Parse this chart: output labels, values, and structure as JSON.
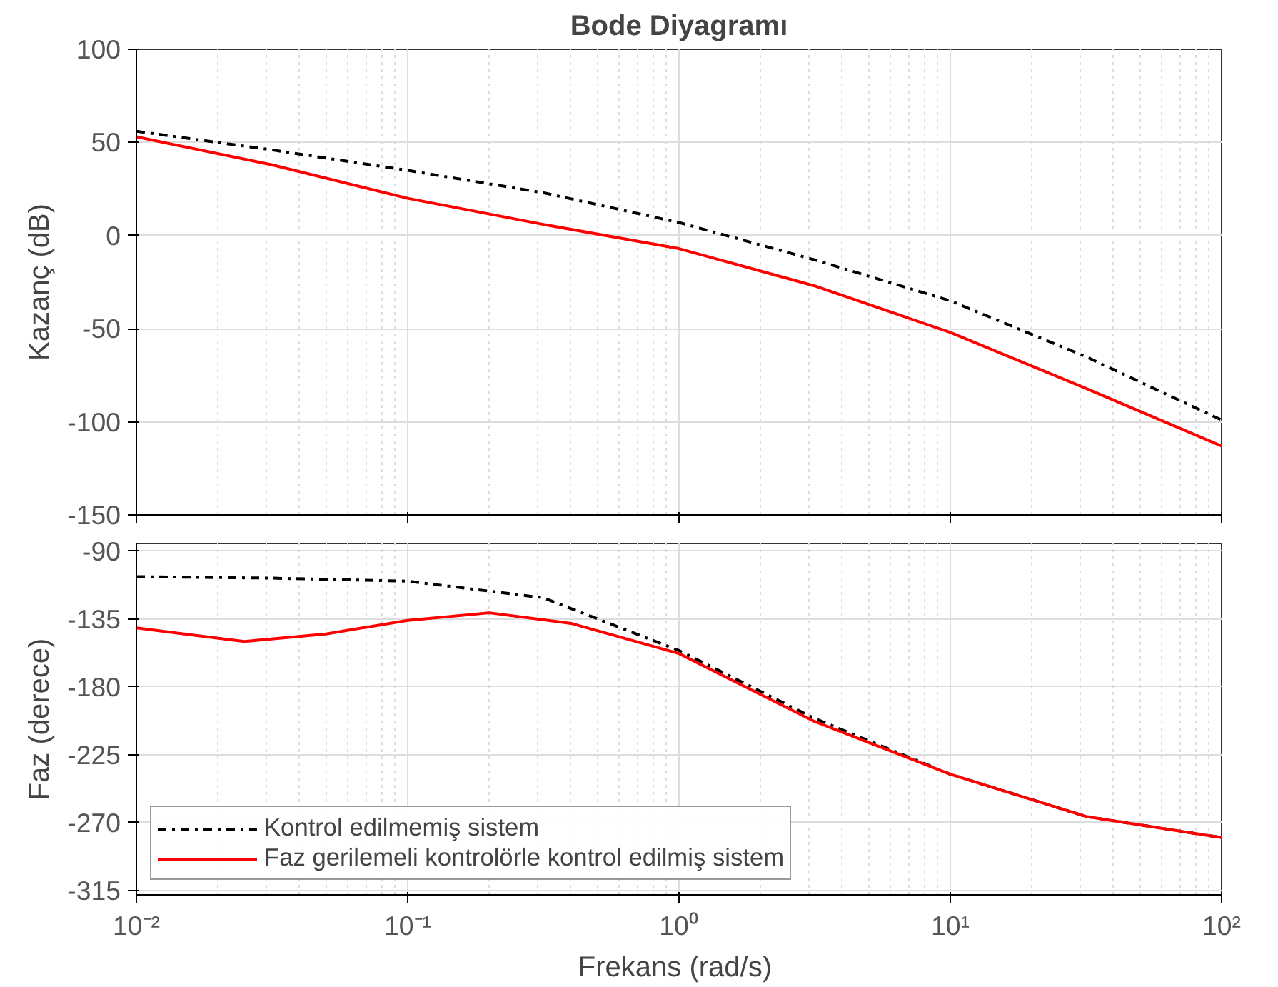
{
  "chart_data": [
    {
      "type": "line",
      "title": "Bode Diyagramı",
      "ylabel": "Kazanç (dB)",
      "log": "x",
      "grid": true,
      "tick_labels": "y",
      "x": [
        0.01,
        0.0316,
        0.1,
        0.316,
        1,
        3.16,
        10,
        31.6,
        100
      ],
      "xlim": [
        0.01,
        100
      ],
      "xticks": [
        {
          "value": 0.01,
          "label": null
        },
        {
          "value": 0.1,
          "label": null
        },
        {
          "value": 1,
          "label": null
        },
        {
          "value": 10,
          "label": null
        },
        {
          "value": 100,
          "label": null
        }
      ],
      "ylim": [
        -150,
        100
      ],
      "yticks": [
        -150,
        -100,
        -50,
        0,
        50,
        100
      ],
      "series": [
        {
          "color": "#000000",
          "line_style": "dashdot",
          "values": [
            56,
            46,
            35,
            23,
            7,
            -13,
            -35,
            -65,
            -99
          ]
        },
        {
          "color": "#ff0000",
          "line_style": "solid",
          "values": [
            53,
            38,
            20,
            6,
            -7,
            -27,
            -52,
            -82,
            -113
          ]
        }
      ]
    },
    {
      "type": "line",
      "xlabel": "Frekans  (rad/s)",
      "ylabel": "Faz (derece)",
      "log": "x",
      "grid": true,
      "legend": "bottom left",
      "xlim": [
        0.01,
        100
      ],
      "xticks": [
        {
          "value": 0.01,
          "label": "10⁻²"
        },
        {
          "value": 0.1,
          "label": "10⁻¹"
        },
        {
          "value": 1,
          "label": "10⁰"
        },
        {
          "value": 10,
          "label": "10¹"
        },
        {
          "value": 100,
          "label": "10²"
        }
      ],
      "ylim": [
        -318,
        -85
      ],
      "yticks": [
        -90,
        -135,
        -180,
        -225,
        -270,
        -315
      ],
      "series": [
        {
          "name": "Kontrol edilmemiş sistem",
          "color": "#000000",
          "line_style": "dashdot",
          "x": [
            0.01,
            0.0316,
            0.1,
            0.316,
            1,
            3.16,
            10,
            31.6,
            100
          ],
          "values": [
            -107,
            -108,
            -110,
            -121,
            -156,
            -201,
            -238,
            -266,
            -280
          ]
        },
        {
          "name": "Faz gerilemeli kontrolörle kontrol edilmiş sistem",
          "color": "#ff0000",
          "line_style": "solid",
          "x": [
            0.01,
            0.025,
            0.05,
            0.1,
            0.2,
            0.4,
            1,
            3.16,
            10,
            31.6,
            100
          ],
          "values": [
            -141,
            -150,
            -145,
            -136,
            -131,
            -138,
            -158,
            -203,
            -238,
            -266,
            -280
          ]
        }
      ]
    }
  ]
}
